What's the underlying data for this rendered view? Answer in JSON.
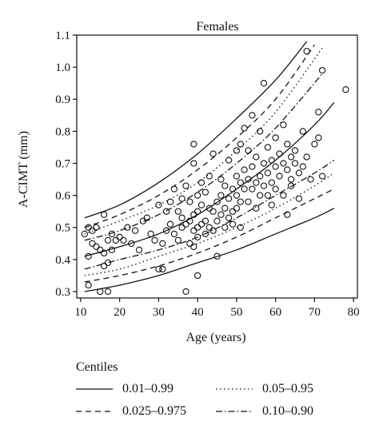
{
  "chart_data": {
    "type": "scatter",
    "title": "Females",
    "xlabel": "Age (years)",
    "ylabel": "A-CIMT (mm)",
    "xlim": [
      9,
      81
    ],
    "ylim": [
      0.28,
      1.1
    ],
    "xticks": [
      10,
      20,
      30,
      40,
      50,
      60,
      70,
      80
    ],
    "yticks": [
      0.3,
      0.4,
      0.5,
      0.6,
      0.7,
      0.8,
      0.9,
      1.0,
      1.1
    ],
    "xtick_labels": [
      "10",
      "20",
      "30",
      "40",
      "50",
      "60",
      "70",
      "80"
    ],
    "ytick_labels": [
      "0.3",
      "0.4",
      "0.5",
      "0.6",
      "0.7",
      "0.8",
      "0.9",
      "1.0",
      "1.1"
    ],
    "grid": false,
    "legend": {
      "title": "Centiles",
      "placement": "below",
      "entries": [
        {
          "label": "0.01–0.99",
          "style": "solid"
        },
        {
          "label": "0.05–0.95",
          "style": "dotted"
        },
        {
          "label": "0.025–0.975",
          "style": "dashed"
        },
        {
          "label": "0.10–0.90",
          "style": "dashdot"
        }
      ]
    },
    "centile_curves": [
      {
        "centile": 0.99,
        "style": "solid",
        "x": [
          11,
          20,
          30,
          40,
          50,
          60,
          68
        ],
        "y": [
          0.53,
          0.57,
          0.64,
          0.73,
          0.84,
          0.96,
          1.08
        ]
      },
      {
        "centile": 0.975,
        "style": "dashed",
        "x": [
          11,
          20,
          30,
          40,
          50,
          60,
          70
        ],
        "y": [
          0.5,
          0.54,
          0.6,
          0.68,
          0.78,
          0.9,
          1.07
        ]
      },
      {
        "centile": 0.95,
        "style": "dotted",
        "x": [
          11,
          20,
          30,
          40,
          50,
          60,
          72
        ],
        "y": [
          0.48,
          0.52,
          0.57,
          0.64,
          0.74,
          0.86,
          1.06
        ]
      },
      {
        "centile": 0.9,
        "style": "dashdot",
        "x": [
          11,
          20,
          30,
          40,
          50,
          60,
          72
        ],
        "y": [
          0.46,
          0.49,
          0.54,
          0.61,
          0.7,
          0.81,
          0.98
        ]
      },
      {
        "centile": 0.5,
        "style": "solid",
        "x": [
          11,
          20,
          30,
          40,
          50,
          60,
          70,
          75
        ],
        "y": [
          0.41,
          0.44,
          0.48,
          0.54,
          0.62,
          0.71,
          0.82,
          0.89
        ]
      },
      {
        "centile": 0.1,
        "style": "dashdot",
        "x": [
          11,
          20,
          30,
          40,
          50,
          60,
          70,
          75
        ],
        "y": [
          0.37,
          0.4,
          0.43,
          0.47,
          0.53,
          0.6,
          0.67,
          0.71
        ]
      },
      {
        "centile": 0.05,
        "style": "dotted",
        "x": [
          11,
          20,
          30,
          40,
          50,
          60,
          70,
          75
        ],
        "y": [
          0.35,
          0.37,
          0.41,
          0.45,
          0.5,
          0.56,
          0.63,
          0.67
        ]
      },
      {
        "centile": 0.025,
        "style": "dashed",
        "x": [
          11,
          20,
          30,
          40,
          50,
          60,
          70,
          75
        ],
        "y": [
          0.33,
          0.35,
          0.38,
          0.42,
          0.47,
          0.53,
          0.59,
          0.62
        ]
      },
      {
        "centile": 0.01,
        "style": "solid",
        "x": [
          11,
          20,
          30,
          40,
          50,
          60,
          70,
          75
        ],
        "y": [
          0.3,
          0.32,
          0.35,
          0.39,
          0.43,
          0.48,
          0.53,
          0.56
        ]
      }
    ],
    "points": [
      [
        11,
        0.48
      ],
      [
        12,
        0.41
      ],
      [
        12,
        0.5
      ],
      [
        13,
        0.49
      ],
      [
        13,
        0.45
      ],
      [
        12,
        0.32
      ],
      [
        14,
        0.44
      ],
      [
        14,
        0.5
      ],
      [
        15,
        0.43
      ],
      [
        15,
        0.3
      ],
      [
        16,
        0.42
      ],
      [
        16,
        0.54
      ],
      [
        16,
        0.38
      ],
      [
        17,
        0.39
      ],
      [
        17,
        0.46
      ],
      [
        17,
        0.3
      ],
      [
        18,
        0.43
      ],
      [
        18,
        0.48
      ],
      [
        19,
        0.46
      ],
      [
        20,
        0.47
      ],
      [
        21,
        0.46
      ],
      [
        22,
        0.5
      ],
      [
        23,
        0.45
      ],
      [
        24,
        0.49
      ],
      [
        25,
        0.43
      ],
      [
        26,
        0.52
      ],
      [
        27,
        0.53
      ],
      [
        28,
        0.48
      ],
      [
        29,
        0.46
      ],
      [
        30,
        0.57
      ],
      [
        30,
        0.37
      ],
      [
        31,
        0.45
      ],
      [
        31,
        0.37
      ],
      [
        32,
        0.55
      ],
      [
        32,
        0.49
      ],
      [
        33,
        0.51
      ],
      [
        33,
        0.58
      ],
      [
        34,
        0.48
      ],
      [
        34,
        0.62
      ],
      [
        35,
        0.55
      ],
      [
        35,
        0.46
      ],
      [
        36,
        0.53
      ],
      [
        36,
        0.59
      ],
      [
        36,
        0.5
      ],
      [
        37,
        0.51
      ],
      [
        37,
        0.63
      ],
      [
        37,
        0.3
      ],
      [
        38,
        0.58
      ],
      [
        38,
        0.45
      ],
      [
        38,
        0.52
      ],
      [
        39,
        0.54
      ],
      [
        39,
        0.49
      ],
      [
        39,
        0.76
      ],
      [
        39,
        0.44
      ],
      [
        39,
        0.7
      ],
      [
        40,
        0.5
      ],
      [
        40,
        0.55
      ],
      [
        40,
        0.47
      ],
      [
        40,
        0.6
      ],
      [
        40,
        0.35
      ],
      [
        41,
        0.57
      ],
      [
        41,
        0.51
      ],
      [
        41,
        0.64
      ],
      [
        42,
        0.52
      ],
      [
        42,
        0.48
      ],
      [
        42,
        0.61
      ],
      [
        43,
        0.56
      ],
      [
        43,
        0.5
      ],
      [
        43,
        0.66
      ],
      [
        44,
        0.55
      ],
      [
        44,
        0.49
      ],
      [
        44,
        0.73
      ],
      [
        45,
        0.58
      ],
      [
        45,
        0.52
      ],
      [
        45,
        0.41
      ],
      [
        46,
        0.6
      ],
      [
        46,
        0.54
      ],
      [
        46,
        0.65
      ],
      [
        47,
        0.56
      ],
      [
        47,
        0.5
      ],
      [
        47,
        0.63
      ],
      [
        48,
        0.59
      ],
      [
        48,
        0.53
      ],
      [
        48,
        0.71
      ],
      [
        49,
        0.62
      ],
      [
        49,
        0.55
      ],
      [
        49,
        0.51
      ],
      [
        50,
        0.6
      ],
      [
        50,
        0.66
      ],
      [
        50,
        0.74
      ],
      [
        50,
        0.56
      ],
      [
        51,
        0.64
      ],
      [
        51,
        0.58
      ],
      [
        51,
        0.76
      ],
      [
        51,
        0.5
      ],
      [
        52,
        0.62
      ],
      [
        52,
        0.68
      ],
      [
        52,
        0.81
      ],
      [
        53,
        0.65
      ],
      [
        53,
        0.58
      ],
      [
        53,
        0.74
      ],
      [
        54,
        0.62
      ],
      [
        54,
        0.69
      ],
      [
        54,
        0.85
      ],
      [
        55,
        0.64
      ],
      [
        55,
        0.56
      ],
      [
        55,
        0.72
      ],
      [
        56,
        0.66
      ],
      [
        56,
        0.6
      ],
      [
        56,
        0.8
      ],
      [
        57,
        0.63
      ],
      [
        57,
        0.7
      ],
      [
        57,
        0.95
      ],
      [
        58,
        0.67
      ],
      [
        58,
        0.6
      ],
      [
        58,
        0.75
      ],
      [
        59,
        0.64
      ],
      [
        59,
        0.71
      ],
      [
        59,
        0.57
      ],
      [
        60,
        0.69
      ],
      [
        60,
        0.62
      ],
      [
        60,
        0.78
      ],
      [
        61,
        0.66
      ],
      [
        61,
        0.73
      ],
      [
        62,
        0.6
      ],
      [
        62,
        0.7
      ],
      [
        62,
        0.82
      ],
      [
        63,
        0.68
      ],
      [
        63,
        0.76
      ],
      [
        63,
        0.54
      ],
      [
        64,
        0.72
      ],
      [
        64,
        0.65
      ],
      [
        64,
        0.63
      ],
      [
        65,
        0.74
      ],
      [
        65,
        0.7
      ],
      [
        66,
        0.67
      ],
      [
        66,
        0.59
      ],
      [
        67,
        0.8
      ],
      [
        67,
        0.69
      ],
      [
        68,
        0.72
      ],
      [
        68,
        1.05
      ],
      [
        69,
        0.65
      ],
      [
        70,
        0.76
      ],
      [
        71,
        0.78
      ],
      [
        71,
        0.86
      ],
      [
        72,
        0.66
      ],
      [
        72,
        0.99
      ],
      [
        78,
        0.93
      ]
    ]
  }
}
